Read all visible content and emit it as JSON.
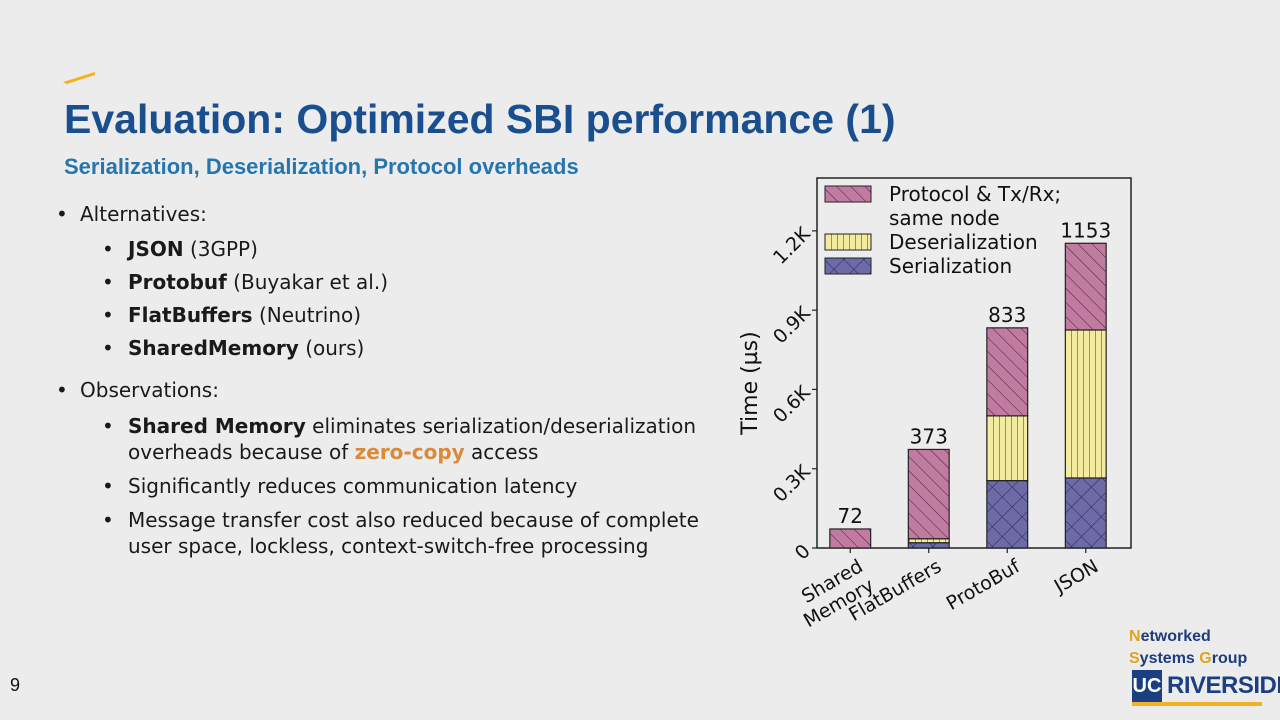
{
  "slide": {
    "title": "Evaluation: Optimized SBI performance (1)",
    "subtitle": "Serialization, Deserialization, Protocol overheads",
    "page_number": "9"
  },
  "content": {
    "alternatives_label": "Alternatives:",
    "alternatives": [
      {
        "name": "JSON",
        "note": " (3GPP)"
      },
      {
        "name": "Protobuf",
        "note": " (Buyakar et al.)"
      },
      {
        "name": "FlatBuffers",
        "note": " (Neutrino)"
      },
      {
        "name": "SharedMemory",
        "note": " (ours)"
      }
    ],
    "observations_label": "Observations:",
    "obs1_bold": "Shared Memory",
    "obs1_rest": " eliminates serialization/deserialization overheads because of ",
    "obs1_highlight": "zero-copy",
    "obs1_end": " access",
    "obs2": "Significantly reduces communication latency",
    "obs3": "Message transfer cost also reduced because of complete user space, lockless, context-switch-free processing"
  },
  "logo": {
    "line1_cap": "N",
    "line1_rest": "etworked",
    "line2_cap1": "S",
    "line2_mid": "ystems ",
    "line2_cap2": "G",
    "line2_rest": "roup",
    "uc": "UC",
    "riverside": "RIVERSIDE"
  },
  "colors": {
    "title": "#1a4f8f",
    "subtitle": "#2676ad",
    "highlight": "#d98b3a",
    "protocol": "#c27ba0",
    "deserialization": "#f2eba0",
    "serialization": "#6e6aa8"
  },
  "chart_data": {
    "type": "bar",
    "stacked": true,
    "categories": [
      "Shared\nMemory",
      "FlatBuffers",
      "ProtoBuf",
      "JSON"
    ],
    "series": [
      {
        "name": "Serialization",
        "values": [
          0,
          20,
          255,
          265
        ]
      },
      {
        "name": "Deserialization",
        "values": [
          0,
          15,
          245,
          560
        ]
      },
      {
        "name": "Protocol & Tx/Rx;\nsame node",
        "values": [
          72,
          338,
          333,
          328
        ]
      }
    ],
    "totals": [
      72,
      373,
      833,
      1153
    ],
    "ylabel": "Time (µs)",
    "yticks": [
      "0",
      "0.3K",
      "0.6K",
      "0.9K",
      "1.2K"
    ],
    "ytick_values": [
      0,
      300,
      600,
      900,
      1200
    ],
    "ylim": [
      0,
      1400
    ],
    "legend_position": "top-left"
  }
}
